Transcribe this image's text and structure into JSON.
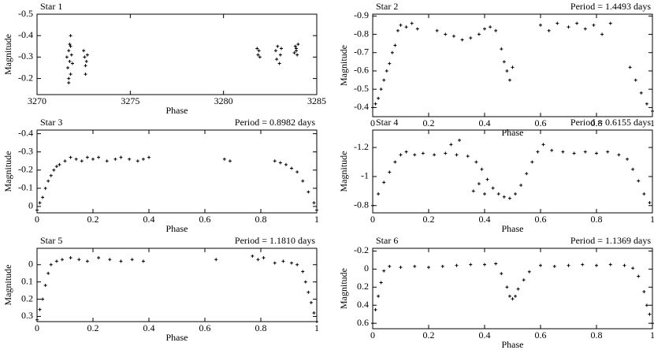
{
  "chart_data": [
    {
      "type": "scatter",
      "title": "Star 1",
      "x_label": "Phase",
      "y_label": "Magnitude",
      "color": "#000000",
      "x": [
        3271.6,
        3271.65,
        3271.7,
        3271.7,
        3271.75,
        3271.8,
        3271.8,
        3271.85,
        3271.9,
        3271.7,
        3271.8,
        3271.75,
        3272.5,
        3272.55,
        3272.6,
        3272.6,
        3272.65,
        3272.7,
        3281.8,
        3281.85,
        3281.9,
        3281.95,
        3282.8,
        3282.85,
        3282.9,
        3283.0,
        3283.05,
        3283.1,
        3283.8,
        3283.85,
        3283.9,
        3283.95,
        3284.0,
        3283.9
      ],
      "values": [
        -0.3,
        -0.25,
        -0.33,
        -0.2,
        -0.28,
        -0.35,
        -0.22,
        -0.31,
        -0.27,
        -0.18,
        -0.4,
        -0.36,
        -0.33,
        -0.3,
        -0.26,
        -0.22,
        -0.28,
        -0.31,
        -0.34,
        -0.31,
        -0.33,
        -0.3,
        -0.33,
        -0.29,
        -0.35,
        -0.27,
        -0.31,
        -0.34,
        -0.32,
        -0.35,
        -0.34,
        -0.31,
        -0.36,
        -0.33
      ],
      "xlim": [
        3270,
        3285
      ],
      "xticks": [
        3270,
        3275,
        3280,
        3285
      ],
      "ylim": [
        -0.125,
        -0.5
      ],
      "yticks": [
        -0.5,
        -0.4,
        -0.3,
        -0.2
      ]
    },
    {
      "type": "scatter",
      "title": "Star 2",
      "subtitle": "Period = 1.4493 days",
      "x_label": "Phase",
      "y_label": "Magnitude",
      "color": "#000000",
      "x": [
        0,
        0.01,
        0.02,
        0.03,
        0.04,
        0.05,
        0.06,
        0.07,
        0.08,
        0.09,
        0.1,
        0.12,
        0.14,
        0.16,
        0.23,
        0.26,
        0.29,
        0.32,
        0.35,
        0.38,
        0.4,
        0.42,
        0.44,
        0.46,
        0.47,
        0.48,
        0.49,
        0.5,
        0.6,
        0.63,
        0.66,
        0.7,
        0.73,
        0.76,
        0.79,
        0.82,
        0.85,
        0.92,
        0.94,
        0.96,
        0.98,
        1.0
      ],
      "values": [
        -0.4,
        -0.42,
        -0.45,
        -0.5,
        -0.55,
        -0.6,
        -0.64,
        -0.7,
        -0.74,
        -0.82,
        -0.85,
        -0.84,
        -0.86,
        -0.83,
        -0.82,
        -0.8,
        -0.79,
        -0.77,
        -0.78,
        -0.8,
        -0.83,
        -0.84,
        -0.82,
        -0.72,
        -0.65,
        -0.6,
        -0.55,
        -0.62,
        -0.85,
        -0.82,
        -0.86,
        -0.84,
        -0.86,
        -0.83,
        -0.85,
        -0.8,
        -0.86,
        -0.62,
        -0.55,
        -0.48,
        -0.42,
        -0.38
      ],
      "xlim": [
        0,
        1
      ],
      "xticks": [
        0,
        0.2,
        0.4,
        0.6,
        0.8,
        1
      ],
      "ylim": [
        -0.35,
        -0.91
      ],
      "yticks": [
        -0.9,
        -0.8,
        -0.7,
        -0.6,
        -0.5,
        -0.4
      ]
    },
    {
      "type": "scatter",
      "title": "Star 3",
      "subtitle": "Period = 0.8982 days",
      "x_label": "Phase",
      "y_label": "Magnitude",
      "color": "#000000",
      "x": [
        0,
        0.01,
        0.02,
        0.03,
        0.04,
        0.05,
        0.06,
        0.07,
        0.08,
        0.1,
        0.12,
        0.14,
        0.16,
        0.18,
        0.2,
        0.22,
        0.25,
        0.28,
        0.3,
        0.33,
        0.36,
        0.38,
        0.4,
        0.67,
        0.69,
        0.85,
        0.87,
        0.89,
        0.91,
        0.93,
        0.95,
        0.97,
        0.99,
        1.0
      ],
      "values": [
        0.02,
        -0.02,
        -0.05,
        -0.1,
        -0.14,
        -0.17,
        -0.2,
        -0.22,
        -0.23,
        -0.25,
        -0.27,
        -0.26,
        -0.25,
        -0.27,
        -0.26,
        -0.27,
        -0.25,
        -0.26,
        -0.27,
        -0.26,
        -0.25,
        -0.26,
        -0.27,
        -0.26,
        -0.25,
        -0.25,
        -0.24,
        -0.23,
        -0.21,
        -0.19,
        -0.14,
        -0.08,
        -0.02,
        0.02
      ],
      "xlim": [
        0,
        1
      ],
      "xticks": [
        0,
        0.2,
        0.4,
        0.6,
        0.8,
        1
      ],
      "ylim": [
        0.035,
        -0.42
      ],
      "yticks": [
        -0.4,
        -0.3,
        -0.2,
        -0.1,
        0
      ]
    },
    {
      "type": "scatter",
      "title": "Star 4",
      "subtitle": "Period = 0.6155 days",
      "x_label": "Phase",
      "y_label": "Magnitude",
      "color": "#000000",
      "x": [
        0,
        0.02,
        0.04,
        0.06,
        0.08,
        0.1,
        0.12,
        0.15,
        0.18,
        0.22,
        0.26,
        0.3,
        0.34,
        0.37,
        0.39,
        0.41,
        0.43,
        0.45,
        0.47,
        0.49,
        0.51,
        0.53,
        0.55,
        0.57,
        0.59,
        0.61,
        0.64,
        0.68,
        0.72,
        0.76,
        0.8,
        0.84,
        0.88,
        0.91,
        0.93,
        0.95,
        0.97,
        0.99,
        0.36,
        0.38,
        0.4,
        0.28,
        0.31
      ],
      "values": [
        -0.8,
        -0.88,
        -0.96,
        -1.03,
        -1.1,
        -1.15,
        -1.17,
        -1.15,
        -1.16,
        -1.15,
        -1.16,
        -1.15,
        -1.14,
        -1.1,
        -1.05,
        -0.98,
        -0.92,
        -0.88,
        -0.86,
        -0.85,
        -0.88,
        -0.94,
        -1.02,
        -1.1,
        -1.17,
        -1.22,
        -1.18,
        -1.17,
        -1.16,
        -1.17,
        -1.16,
        -1.17,
        -1.15,
        -1.12,
        -1.05,
        -0.97,
        -0.88,
        -0.82,
        -0.9,
        -0.95,
        -0.88,
        -1.22,
        -1.25
      ],
      "xlim": [
        0,
        1
      ],
      "xticks": [
        0,
        0.2,
        0.4,
        0.6,
        0.8,
        1
      ],
      "ylim": [
        -0.75,
        -1.32
      ],
      "yticks": [
        -1.2,
        -1,
        -0.8
      ]
    },
    {
      "type": "scatter",
      "title": "Star 5",
      "subtitle": "Period = 1.1810 days",
      "x_label": "Phase",
      "y_label": "Magnitude",
      "color": "#000000",
      "x": [
        0,
        0.01,
        0.02,
        0.03,
        0.04,
        0.05,
        0.07,
        0.09,
        0.12,
        0.15,
        0.18,
        0.22,
        0.26,
        0.3,
        0.34,
        0.38,
        0.64,
        0.77,
        0.79,
        0.81,
        0.85,
        0.88,
        0.91,
        0.93,
        0.95,
        0.96,
        0.97,
        0.98,
        0.99,
        1.0
      ],
      "values": [
        0.32,
        0.26,
        0.2,
        0.12,
        0.05,
        0,
        -0.02,
        -0.03,
        -0.04,
        -0.03,
        -0.02,
        -0.04,
        -0.03,
        -0.02,
        -0.03,
        -0.02,
        -0.03,
        -0.05,
        -0.03,
        -0.04,
        -0.01,
        -0.02,
        -0.01,
        0,
        0.04,
        0.1,
        0.16,
        0.22,
        0.28,
        0.33
      ],
      "xlim": [
        0,
        1
      ],
      "xticks": [
        0,
        0.2,
        0.4,
        0.6,
        0.8,
        1
      ],
      "ylim": [
        0.33,
        -0.095
      ],
      "yticks": [
        0,
        0.1,
        0.2,
        0.3
      ]
    },
    {
      "type": "scatter",
      "title": "Star 6",
      "subtitle": "Period = 1.1369 days",
      "x_label": "Phase",
      "y_label": "Magnitude",
      "color": "#000000",
      "x": [
        0,
        0.01,
        0.02,
        0.03,
        0.04,
        0.06,
        0.1,
        0.15,
        0.2,
        0.25,
        0.3,
        0.35,
        0.4,
        0.44,
        0.46,
        0.48,
        0.49,
        0.5,
        0.51,
        0.52,
        0.54,
        0.56,
        0.6,
        0.65,
        0.7,
        0.75,
        0.8,
        0.85,
        0.9,
        0.93,
        0.95,
        0.97,
        0.98,
        0.99,
        1.0
      ],
      "values": [
        0.6,
        0.45,
        0.3,
        0.15,
        0.02,
        -0.03,
        -0.02,
        -0.03,
        -0.02,
        -0.03,
        -0.04,
        -0.05,
        -0.05,
        -0.06,
        0.05,
        0.2,
        0.3,
        0.33,
        0.3,
        0.22,
        0.12,
        0.03,
        -0.04,
        -0.03,
        -0.04,
        -0.05,
        -0.04,
        -0.05,
        -0.04,
        -0.01,
        0.08,
        0.25,
        0.4,
        0.5,
        0.6
      ],
      "xlim": [
        0,
        1
      ],
      "xticks": [
        0,
        0.2,
        0.4,
        0.6,
        0.8,
        1
      ],
      "ylim": [
        0.66,
        -0.23
      ],
      "yticks": [
        -0.2,
        0,
        0.2,
        0.4,
        0.6
      ]
    }
  ]
}
